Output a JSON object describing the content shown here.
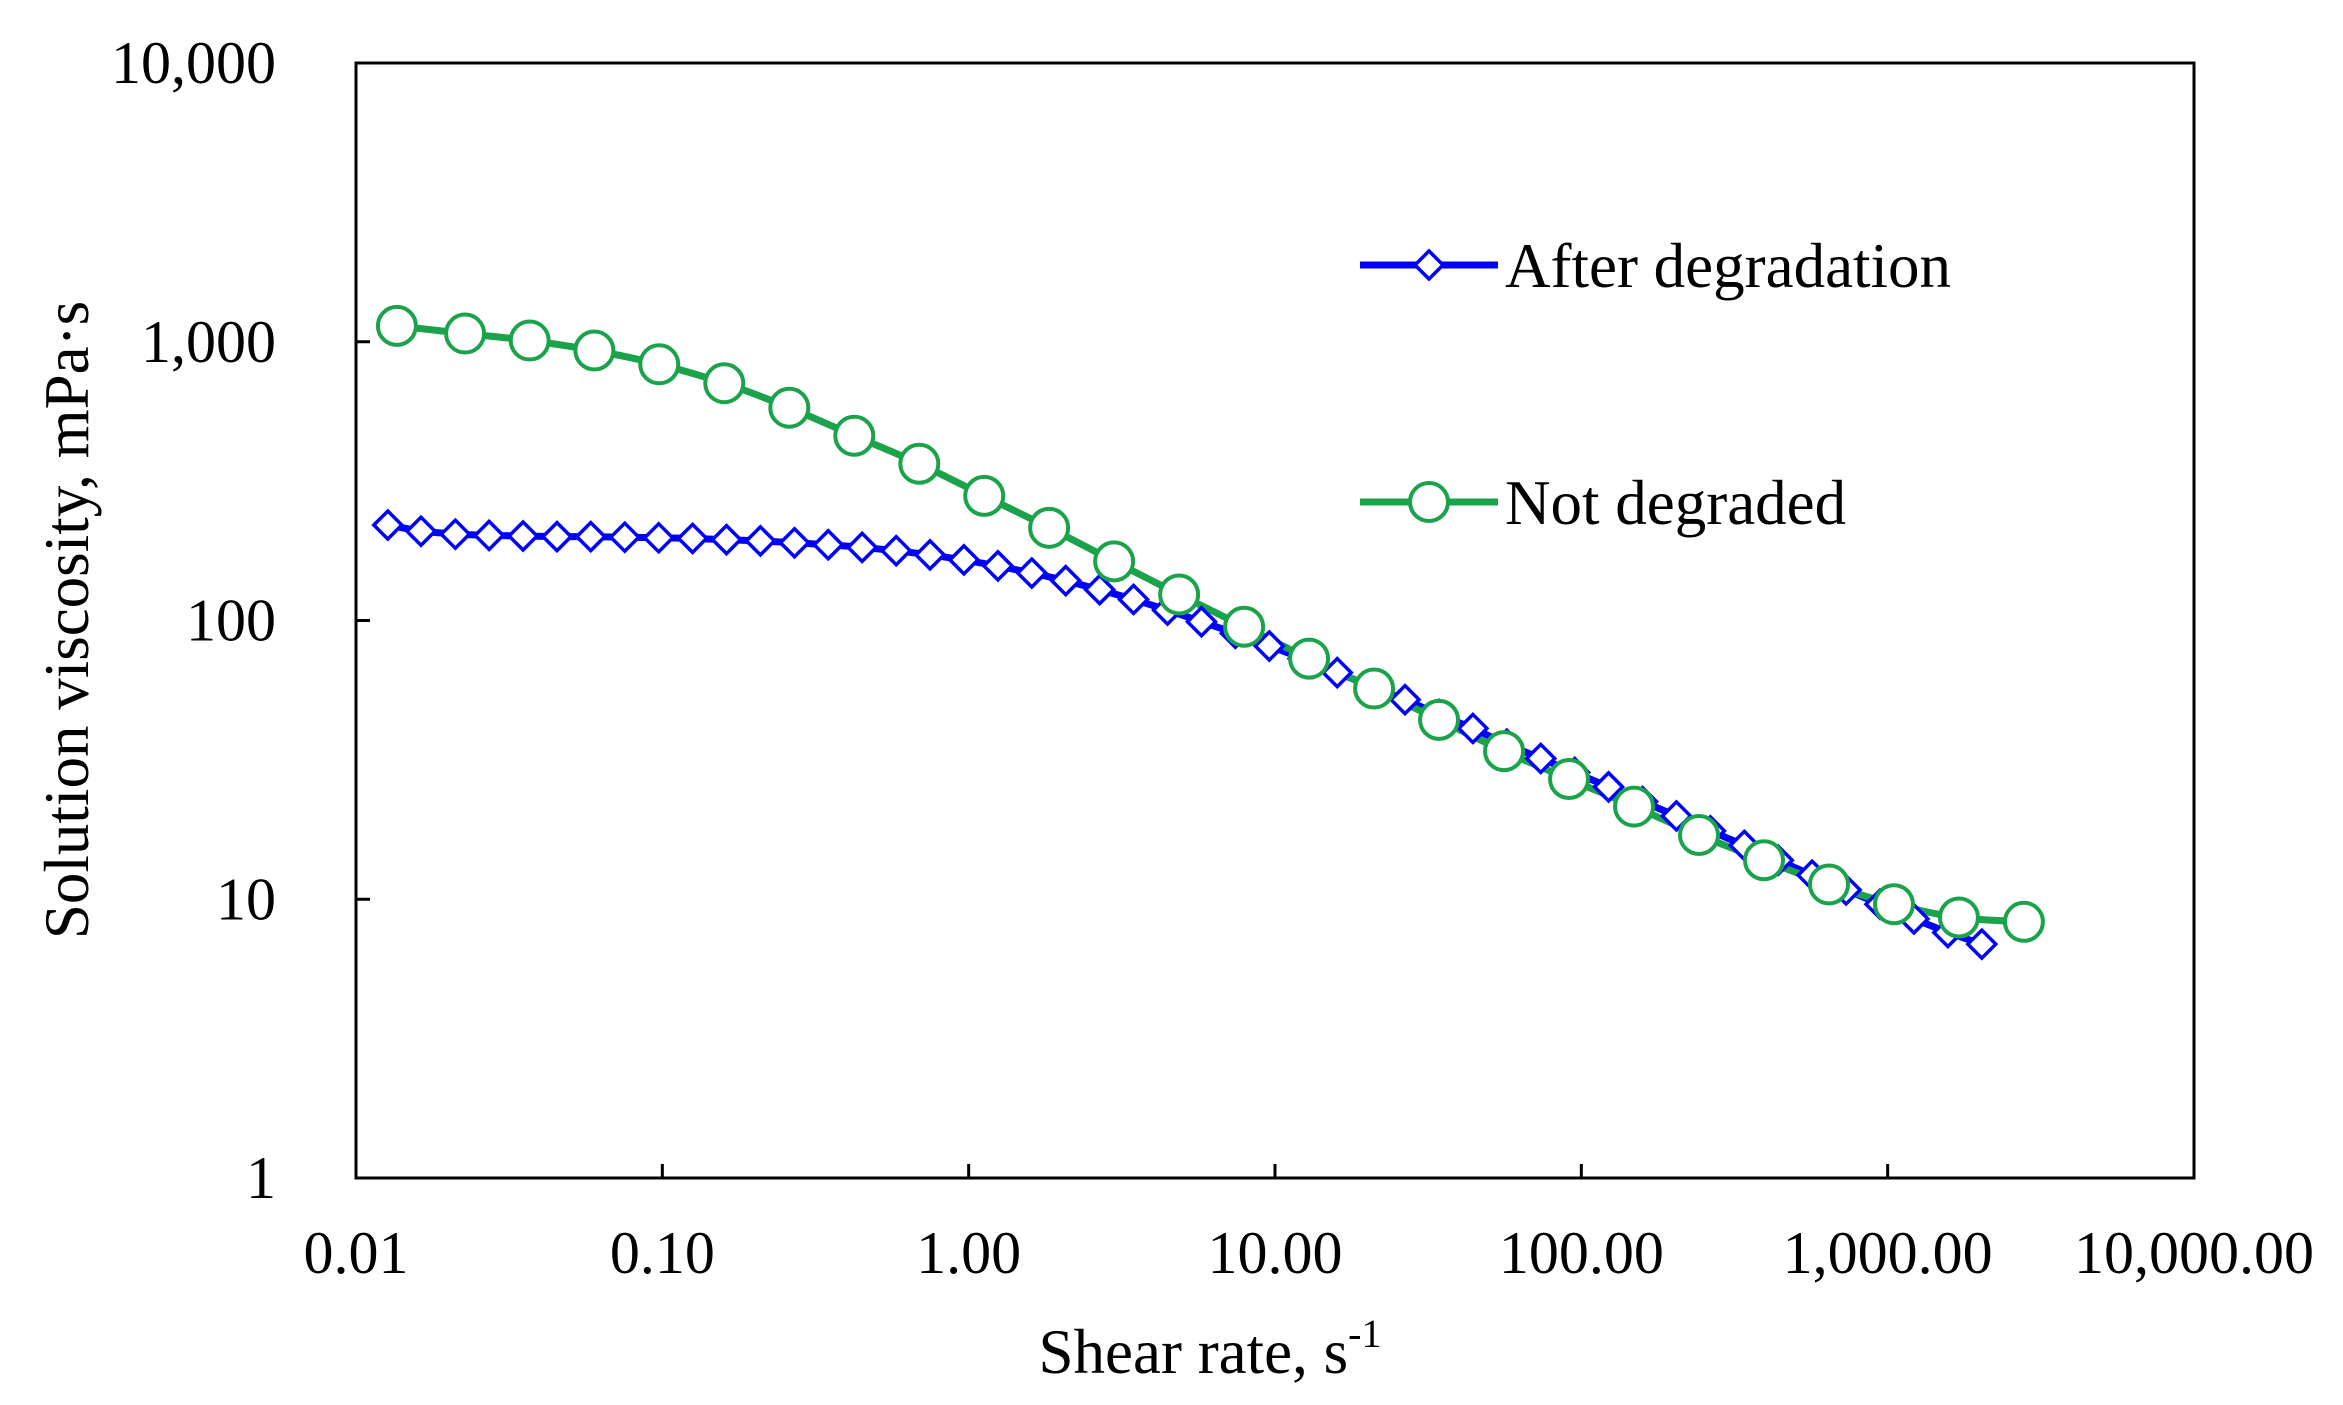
{
  "chart_data": {
    "type": "line",
    "title": "",
    "xlabel": "Shear rate, s",
    "xlabel_superscript": "-1",
    "ylabel": "Solution viscosity, mPa·s",
    "x_scale": "log",
    "y_scale": "log",
    "xlim": [
      0.01,
      10000
    ],
    "ylim": [
      1,
      10000
    ],
    "x_ticks": [
      0.01,
      0.1,
      1,
      10,
      100,
      1000,
      10000
    ],
    "x_tick_labels": [
      "0.01",
      "0.10",
      "1.00",
      "10.00",
      "100.00",
      "1,000.00",
      "10,000.00"
    ],
    "y_ticks": [
      1,
      10,
      100,
      1000,
      10000
    ],
    "y_tick_labels": [
      "1",
      "10",
      "100",
      "1,000",
      "10,000"
    ],
    "grid": false,
    "legend_position": "top-right",
    "series": [
      {
        "name": "After degradation",
        "color": "#0000ff",
        "marker": "diamond",
        "x": [
          0.0127,
          0.0163,
          0.0211,
          0.0272,
          0.0351,
          0.0453,
          0.0584,
          0.0754,
          0.0973,
          0.1255,
          0.162,
          0.209,
          0.27,
          0.348,
          0.449,
          0.58,
          0.748,
          0.965,
          1.246,
          1.607,
          2.074,
          2.677,
          3.454,
          4.458,
          5.753,
          7.424,
          9.58,
          12.36,
          15.96,
          20.59,
          26.57,
          34.3,
          44.26,
          57.11,
          73.7,
          95.12,
          122.7,
          158.4,
          204.4,
          263.8,
          340.4,
          439.3,
          566.9,
          731.6,
          944.2,
          1218.4,
          1572.4,
          2029.2
        ],
        "y": [
          220,
          209,
          204,
          202,
          201,
          200,
          200,
          199,
          198,
          197,
          195,
          193,
          190,
          187,
          183,
          178,
          172,
          165,
          157,
          148,
          139,
          129,
          119,
          109,
          99,
          90,
          81,
          73,
          65,
          58,
          52,
          46,
          41,
          36,
          32,
          28.5,
          25.3,
          22.4,
          19.9,
          17.6,
          15.6,
          13.8,
          12.2,
          10.8,
          9.6,
          8.5,
          7.6,
          6.9
        ]
      },
      {
        "name": "Not degraded",
        "color": "#1aa34a",
        "marker": "circle",
        "x": [
          0.0136,
          0.0227,
          0.0369,
          0.06,
          0.0977,
          0.1593,
          0.2597,
          0.4232,
          0.69,
          1.124,
          1.831,
          2.984,
          4.864,
          7.928,
          12.92,
          21.06,
          34.32,
          55.94,
          91.17,
          148.6,
          242.2,
          394.7,
          643.3,
          1048.6,
          1709,
          2785
        ],
        "y": [
          1140,
          1070,
          1010,
          930,
          830,
          710,
          580,
          460,
          365,
          280,
          215,
          163,
          124,
          95,
          73,
          57,
          44,
          34,
          27,
          21.5,
          17,
          13.8,
          11.3,
          9.6,
          8.6,
          8.3
        ]
      }
    ]
  }
}
